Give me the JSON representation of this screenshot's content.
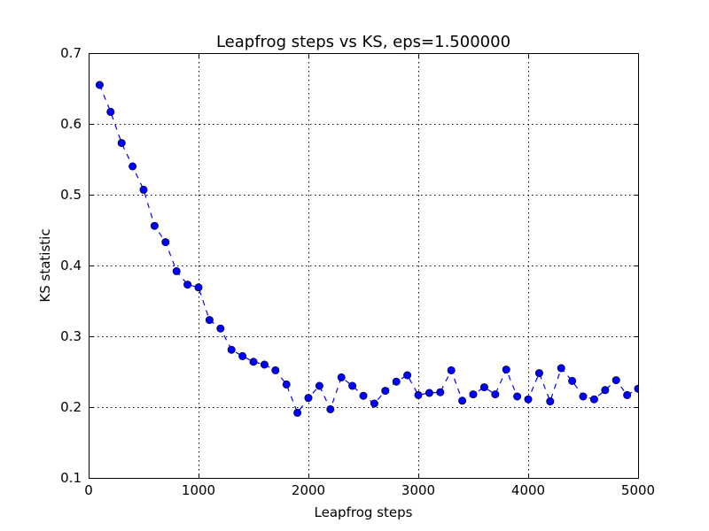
{
  "chart_data": {
    "type": "line",
    "title": "Leapfrog steps vs KS, eps=1.500000",
    "xlabel": "Leapfrog steps",
    "ylabel": "KS statistic",
    "xlim": [
      0,
      5000
    ],
    "ylim": [
      0.1,
      0.7
    ],
    "xticks": [
      0,
      1000,
      2000,
      3000,
      4000,
      5000
    ],
    "xtick_labels": [
      "0",
      "1000",
      "2000",
      "3000",
      "4000",
      "5000"
    ],
    "yticks": [
      0.1,
      0.2,
      0.3,
      0.4,
      0.5,
      0.6,
      0.7
    ],
    "ytick_labels": [
      "0.1",
      "0.2",
      "0.3",
      "0.4",
      "0.5",
      "0.6",
      "0.7"
    ],
    "grid": true,
    "line_style": "dashed",
    "marker": "circle",
    "color": "#0000ff",
    "series": [
      {
        "x": [
          100,
          200,
          300,
          400,
          500,
          600,
          700,
          800,
          900,
          1000,
          1100,
          1200,
          1300,
          1400,
          1500,
          1600,
          1700,
          1800,
          1900,
          2000,
          2100,
          2200,
          2300,
          2400,
          2500,
          2600,
          2700,
          2800,
          2900,
          3000,
          3100,
          3200,
          3300,
          3400,
          3500,
          3600,
          3700,
          3800,
          3900,
          4000,
          4100,
          4200,
          4300,
          4400,
          4500,
          4600,
          4700,
          4800,
          4900,
          5000
        ],
        "y": [
          0.655,
          0.617,
          0.573,
          0.54,
          0.507,
          0.456,
          0.433,
          0.392,
          0.373,
          0.369,
          0.323,
          0.311,
          0.281,
          0.272,
          0.264,
          0.26,
          0.252,
          0.232,
          0.192,
          0.213,
          0.23,
          0.197,
          0.242,
          0.23,
          0.216,
          0.205,
          0.223,
          0.236,
          0.245,
          0.217,
          0.22,
          0.221,
          0.252,
          0.209,
          0.218,
          0.228,
          0.218,
          0.253,
          0.215,
          0.211,
          0.248,
          0.208,
          0.255,
          0.237,
          0.215,
          0.211,
          0.224,
          0.238,
          0.217,
          0.226
        ]
      }
    ]
  }
}
